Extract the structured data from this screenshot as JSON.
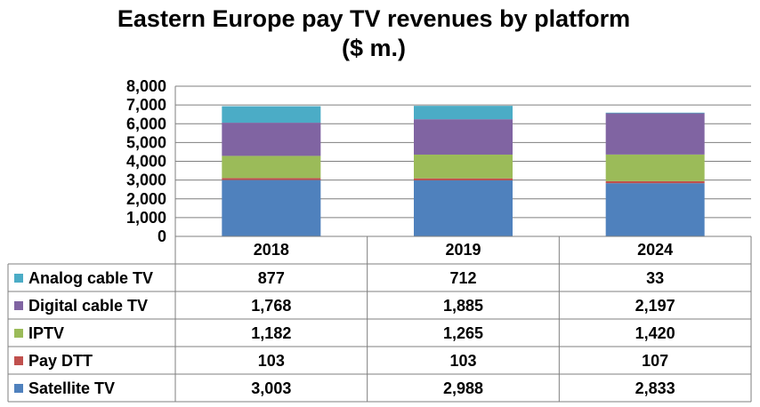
{
  "chart_data": {
    "type": "bar",
    "stacked": true,
    "title": "Eastern Europe pay TV revenues by platform",
    "subtitle": "($ m.)",
    "categories": [
      "2018",
      "2019",
      "2024"
    ],
    "ylim": [
      0,
      8000
    ],
    "y_ticks": [
      "0",
      "1,000",
      "2,000",
      "3,000",
      "4,000",
      "5,000",
      "6,000",
      "7,000",
      "8,000"
    ],
    "grid": true,
    "legend": "data-table-left",
    "series": [
      {
        "name": "Satellite TV",
        "color": "#4F81BD",
        "values": [
          3003,
          2988,
          2833
        ],
        "labels": [
          "3,003",
          "2,988",
          "2,833"
        ]
      },
      {
        "name": "Pay DTT",
        "color": "#C0504D",
        "values": [
          103,
          103,
          107
        ],
        "labels": [
          "103",
          "103",
          "107"
        ]
      },
      {
        "name": "IPTV",
        "color": "#9BBB59",
        "values": [
          1182,
          1265,
          1420
        ],
        "labels": [
          "1,182",
          "1,265",
          "1,420"
        ]
      },
      {
        "name": "Digital cable TV",
        "color": "#8064A2",
        "values": [
          1768,
          1885,
          2197
        ],
        "labels": [
          "1,768",
          "1,885",
          "2,197"
        ]
      },
      {
        "name": "Analog cable TV",
        "color": "#4BACC6",
        "values": [
          877,
          712,
          33
        ],
        "labels": [
          "877",
          "712",
          "33"
        ]
      }
    ]
  }
}
